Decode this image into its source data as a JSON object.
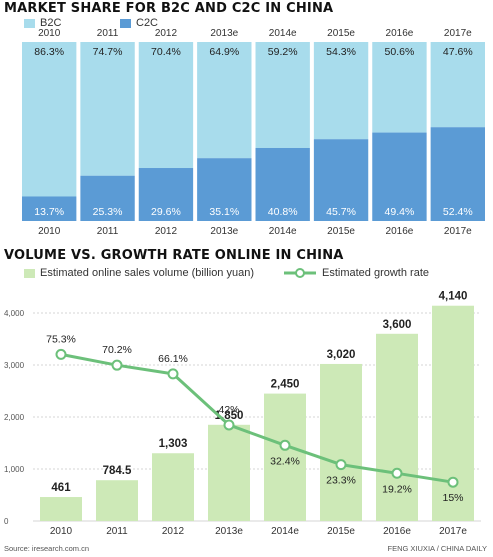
{
  "footer": {
    "source": "Source: iresearch.com.cn",
    "credit": "FENG XIUXIA / CHINA DAILY"
  },
  "colors": {
    "b2c": "#a8dcec",
    "c2c": "#5b9bd5",
    "volume_bar": "#cde9b7",
    "growth_line": "#6cc07a"
  },
  "chart_data": [
    {
      "type": "bar",
      "stacked": true,
      "title": "MARKET SHARE FOR B2C AND C2C IN CHINA",
      "categories": [
        "2010",
        "2011",
        "2012",
        "2013e",
        "2014e",
        "2015e",
        "2016e",
        "2017e"
      ],
      "series": [
        {
          "name": "B2C",
          "values": [
            86.3,
            74.7,
            70.4,
            64.9,
            59.2,
            54.3,
            50.6,
            47.6
          ],
          "labels": [
            "86.3%",
            "74.7%",
            "70.4%",
            "64.9%",
            "59.2%",
            "54.3%",
            "50.6%",
            "47.6%"
          ]
        },
        {
          "name": "C2C",
          "values": [
            13.7,
            25.3,
            29.6,
            35.1,
            40.8,
            45.7,
            49.4,
            52.4
          ],
          "labels": [
            "13.7%",
            "25.3%",
            "29.6%",
            "35.1%",
            "40.8%",
            "45.7%",
            "49.4%",
            "52.4%"
          ]
        }
      ],
      "ylim": [
        0,
        100
      ],
      "legend": "top-left"
    },
    {
      "type": "bar",
      "title": "VOLUME VS. GROWTH RATE ONLINE IN CHINA",
      "categories": [
        "2010",
        "2011",
        "2012",
        "2013e",
        "2014e",
        "2015e",
        "2016e",
        "2017e"
      ],
      "series": [
        {
          "name": "Estimated online sales volume (billion yuan)",
          "type": "bar",
          "values": [
            461,
            784.5,
            1303,
            1850,
            2450,
            3020,
            3600,
            4140
          ],
          "labels": [
            "461",
            "784.5",
            "1,303",
            "1,850",
            "2,450",
            "3,020",
            "3,600",
            "4,140"
          ]
        },
        {
          "name": "Estimated growth rate",
          "type": "line",
          "values": [
            75.3,
            70.2,
            66.1,
            42,
            32.4,
            23.3,
            19.2,
            15
          ],
          "labels": [
            "75.3%",
            "70.2%",
            "66.1%",
            "42%",
            "32.4%",
            "23.3%",
            "19.2%",
            "15%"
          ]
        }
      ],
      "yticks": [
        "4,000",
        "3,000",
        "2,000",
        "1,000",
        "0"
      ],
      "ytick_values": [
        4000,
        3000,
        2000,
        1000,
        0
      ],
      "ylim": [
        0,
        4000
      ],
      "y2lim": [
        0,
        100
      ],
      "grid": true,
      "legend": "top"
    }
  ]
}
